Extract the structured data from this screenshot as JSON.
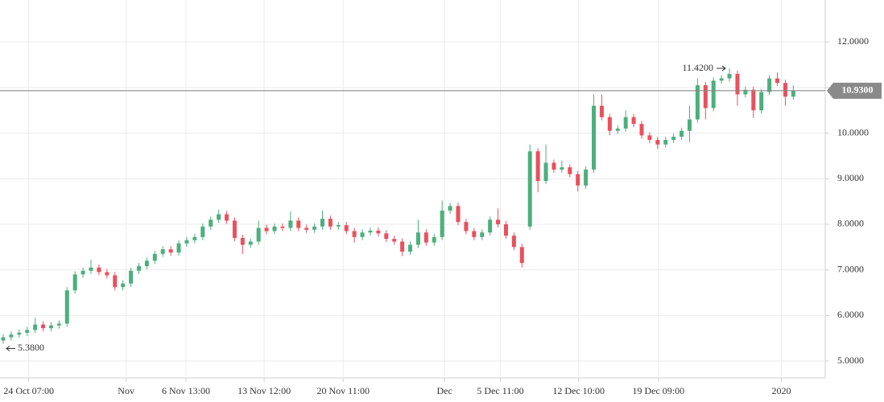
{
  "chart_data": {
    "type": "candlestick",
    "xlim": [
      -0.4,
      103
    ],
    "ylim": [
      4.63,
      12.92
    ],
    "grid": true,
    "up_color": "#4caf7d",
    "down_color": "#e8515d",
    "xticks": [
      {
        "value": 3.2,
        "label": "24 Oct 07:00"
      },
      {
        "value": 15.4,
        "label": "Nov"
      },
      {
        "value": 22.9,
        "label": "6 Nov 13:00"
      },
      {
        "value": 32.7,
        "label": "13 Nov 12:00"
      },
      {
        "value": 42.6,
        "label": "20 Nov 11:00"
      },
      {
        "value": 55.3,
        "label": "Dec"
      },
      {
        "value": 62.3,
        "label": "5 Dec 11:00"
      },
      {
        "value": 72.1,
        "label": "12 Dec 10:00"
      },
      {
        "value": 82.1,
        "label": "19 Dec 09:00"
      },
      {
        "value": 97.5,
        "label": "2020"
      }
    ],
    "yticks": [
      {
        "value": 5,
        "label": "5.0000"
      },
      {
        "value": 6,
        "label": "6.0000"
      },
      {
        "value": 7,
        "label": "7.0000"
      },
      {
        "value": 8,
        "label": "8.0000"
      },
      {
        "value": 9,
        "label": "9.0000"
      },
      {
        "value": 10,
        "label": "10.0000"
      },
      {
        "value": 11,
        "label": "11.0000"
      },
      {
        "value": 12,
        "label": "12.0000"
      }
    ],
    "last_price": {
      "value": 10.93,
      "label": "10.9300"
    },
    "annotations": [
      {
        "x": 91,
        "value": 11.42,
        "label": "11.4200"
      },
      {
        "x": 0,
        "value": 5.38,
        "label": "5.3800"
      }
    ],
    "open": [
      5.45,
      5.52,
      5.58,
      5.62,
      5.68,
      5.8,
      5.72,
      5.78,
      5.82,
      6.55,
      6.9,
      6.98,
      7.05,
      6.95,
      6.88,
      6.62,
      6.7,
      6.98,
      7.08,
      7.2,
      7.35,
      7.45,
      7.38,
      7.58,
      7.65,
      7.72,
      7.95,
      8.1,
      8.22,
      8.08,
      7.7,
      7.55,
      7.62,
      7.92,
      7.85,
      7.95,
      7.92,
      8.08,
      7.92,
      7.88,
      7.95,
      8.12,
      7.95,
      7.98,
      7.85,
      7.72,
      7.82,
      7.86,
      7.8,
      7.68,
      7.62,
      7.4,
      7.55,
      7.82,
      7.6,
      7.72,
      8.3,
      8.4,
      8.05,
      7.85,
      7.72,
      7.82,
      8.1,
      8.0,
      7.75,
      7.5,
      7.95,
      9.6,
      8.95,
      9.35,
      9.2,
      9.25,
      9.1,
      8.85,
      9.2,
      10.6,
      10.35,
      10.05,
      10.1,
      10.35,
      10.2,
      9.95,
      9.85,
      9.75,
      9.85,
      9.92,
      10.05,
      10.3,
      11.05,
      10.55,
      11.15,
      11.2,
      11.3,
      10.85,
      10.95,
      10.5,
      10.9,
      11.2,
      11.1,
      10.8
    ],
    "high": [
      5.59,
      5.65,
      5.69,
      5.75,
      5.95,
      5.87,
      5.85,
      5.89,
      6.62,
      6.97,
      7.05,
      7.22,
      7.12,
      7.02,
      6.95,
      6.77,
      7.05,
      7.15,
      7.27,
      7.42,
      7.52,
      7.52,
      7.65,
      7.72,
      7.79,
      8.02,
      8.17,
      8.32,
      8.29,
      8.15,
      7.77,
      7.69,
      8.08,
      7.99,
      8.02,
      8.02,
      8.28,
      8.15,
      7.99,
      8.02,
      8.3,
      8.19,
      8.05,
      8.05,
      7.92,
      7.89,
      7.93,
      7.93,
      7.87,
      7.75,
      7.69,
      7.62,
      8.1,
      7.89,
      7.79,
      8.52,
      8.47,
      8.47,
      8.12,
      7.92,
      7.89,
      8.17,
      8.35,
      8.07,
      7.82,
      7.57,
      9.75,
      9.67,
      9.75,
      9.42,
      9.4,
      9.32,
      9.17,
      9.27,
      10.85,
      10.85,
      10.42,
      10.17,
      10.5,
      10.42,
      10.27,
      10.02,
      9.92,
      9.92,
      9.99,
      10.12,
      10.6,
      11.2,
      11.12,
      11.22,
      11.27,
      11.42,
      11.37,
      11.02,
      11.02,
      10.97,
      11.27,
      11.33,
      11.17,
      11.05
    ],
    "low": [
      5.38,
      5.45,
      5.51,
      5.55,
      5.61,
      5.65,
      5.65,
      5.71,
      5.75,
      6.48,
      6.83,
      6.91,
      6.88,
      6.81,
      6.55,
      6.55,
      6.63,
      6.91,
      7.01,
      7.13,
      7.28,
      7.31,
      7.31,
      7.51,
      7.58,
      7.65,
      7.88,
      8.03,
      8.01,
      7.63,
      7.35,
      7.48,
      7.55,
      7.78,
      7.78,
      7.85,
      7.85,
      7.85,
      7.81,
      7.81,
      7.88,
      7.88,
      7.88,
      7.78,
      7.6,
      7.65,
      7.75,
      7.73,
      7.61,
      7.55,
      7.3,
      7.33,
      7.48,
      7.53,
      7.53,
      7.65,
      8.23,
      7.98,
      7.78,
      7.65,
      7.65,
      7.75,
      7.93,
      7.68,
      7.43,
      7.05,
      7.88,
      8.7,
      8.88,
      9.13,
      9.13,
      9.03,
      8.72,
      8.78,
      9.13,
      10.28,
      9.95,
      9.98,
      10.03,
      10.13,
      9.88,
      9.78,
      9.65,
      9.68,
      9.78,
      9.85,
      9.8,
      10.23,
      10.3,
      10.48,
      11.08,
      11.13,
      10.6,
      10.78,
      10.33,
      10.43,
      10.83,
      11.03,
      10.6,
      10.73
    ],
    "close": [
      5.52,
      5.58,
      5.62,
      5.68,
      5.8,
      5.72,
      5.78,
      5.82,
      6.55,
      6.9,
      6.98,
      7.05,
      6.95,
      6.88,
      6.62,
      6.7,
      6.98,
      7.08,
      7.2,
      7.35,
      7.45,
      7.38,
      7.58,
      7.65,
      7.72,
      7.95,
      8.1,
      8.22,
      8.08,
      7.7,
      7.55,
      7.62,
      7.92,
      7.85,
      7.95,
      7.92,
      8.08,
      7.92,
      7.88,
      7.95,
      8.12,
      7.95,
      7.98,
      7.85,
      7.72,
      7.82,
      7.86,
      7.8,
      7.68,
      7.62,
      7.4,
      7.55,
      7.82,
      7.6,
      7.72,
      8.3,
      8.4,
      8.05,
      7.85,
      7.72,
      7.82,
      8.1,
      8.0,
      7.75,
      7.5,
      7.15,
      9.6,
      8.95,
      9.35,
      9.2,
      9.25,
      9.1,
      8.85,
      9.2,
      10.6,
      10.35,
      10.05,
      10.1,
      10.35,
      10.2,
      9.95,
      9.85,
      9.75,
      9.85,
      9.92,
      10.05,
      10.3,
      11.05,
      10.55,
      11.15,
      11.2,
      11.3,
      10.85,
      10.95,
      10.5,
      10.9,
      11.2,
      11.1,
      10.8,
      10.93
    ]
  }
}
